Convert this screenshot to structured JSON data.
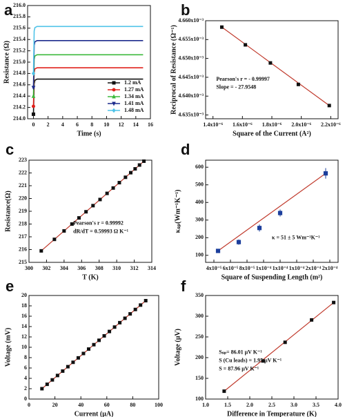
{
  "chart_data": [
    {
      "type": "line",
      "label": "a",
      "x_label": "Time (s)",
      "y_label": "Resistance (Ω)",
      "x": [
        0,
        0.1,
        0.2,
        0.5,
        1,
        5,
        10,
        15
      ],
      "series": [
        {
          "name": "1.2 mA",
          "color": "#111111",
          "values": [
            214.08,
            214.62,
            214.68,
            214.7,
            214.7,
            214.7,
            214.7,
            214.7
          ]
        },
        {
          "name": "1.27 mA",
          "color": "#e0201b",
          "values": [
            214.22,
            214.82,
            214.88,
            214.9,
            214.9,
            214.9,
            214.9,
            214.9
          ]
        },
        {
          "name": "1.34 mA",
          "color": "#3cb93c",
          "values": [
            214.4,
            215.05,
            215.11,
            215.13,
            215.13,
            215.13,
            215.13,
            215.13
          ]
        },
        {
          "name": "1.41 mA",
          "color": "#1c2a8c",
          "values": [
            214.55,
            215.3,
            215.36,
            215.38,
            215.38,
            215.38,
            215.38,
            215.38
          ]
        },
        {
          "name": "1.48 mA",
          "color": "#4fc3e8",
          "values": [
            214.8,
            215.55,
            215.61,
            215.63,
            215.63,
            215.63,
            215.63,
            215.63
          ]
        }
      ],
      "xlim": [
        -0.8,
        16
      ],
      "xticks": [
        0,
        2,
        4,
        6,
        8,
        10,
        12,
        14,
        16
      ],
      "ylim": [
        214.0,
        216.0
      ],
      "yticks": [
        {
          "value": 214.0,
          "label": "214.0"
        },
        214.2,
        214.4,
        214.6,
        214.8,
        {
          "value": 215.0,
          "label": "215.0"
        },
        215.2,
        215.4,
        215.6,
        215.8,
        {
          "value": 216.0,
          "label": "216.0"
        }
      ],
      "legend": "lower right"
    },
    {
      "type": "scatter",
      "label": "b",
      "x_label": "Square of the Current (A²)",
      "y_label": "Reciprocal of Resistance (Ω⁻¹)",
      "x": [
        1.46e-06,
        1.62e-06,
        1.79e-06,
        1.98e-06,
        2.19e-06
      ],
      "values": [
        0.0046583,
        0.0046536,
        0.0046488,
        0.0046431,
        0.0046375
      ],
      "color": "#111111",
      "line_color": "#c0392b",
      "xlim": [
        1.35e-06,
        2.25e-06
      ],
      "xticks": [
        {
          "value": 1.4e-06,
          "label": "1.4x10⁻⁶"
        },
        {
          "value": 1.6e-06,
          "label": "1.6x10⁻⁶"
        },
        {
          "value": 1.8e-06,
          "label": "1.8x10⁻⁶"
        },
        {
          "value": 2e-06,
          "label": "2.0x10⁻⁶"
        },
        {
          "value": 2.2e-06,
          "label": "2.2x10⁻⁶"
        }
      ],
      "ylim": [
        0.004634,
        0.00466
      ],
      "yticks": [
        {
          "value": 0.004635,
          "label": "4.635x10⁻³"
        },
        {
          "value": 0.00464,
          "label": "4.640x10⁻³"
        },
        {
          "value": 0.004645,
          "label": "4.645x10⁻³"
        },
        {
          "value": 0.00465,
          "label": "4.650x10⁻³"
        },
        {
          "value": 0.004655,
          "label": "4.655x10⁻³"
        },
        {
          "value": 0.00466,
          "label": "4.660x10⁻³"
        }
      ],
      "annotations": [
        "Pearson's r = - 0.99997",
        "Slope = - 27.9548"
      ]
    },
    {
      "type": "scatter",
      "label": "c",
      "x_label": "T (K)",
      "y_label": "Resistance(Ω)",
      "x": [
        301.4,
        302.9,
        304.0,
        304.9,
        305.7,
        306.5,
        307.3,
        308.1,
        308.9,
        309.6,
        310.3,
        311.0,
        311.6,
        312.1,
        312.6,
        313.1
      ],
      "values": [
        215.9,
        216.8,
        217.46,
        218.0,
        218.48,
        218.96,
        219.44,
        219.92,
        220.4,
        220.82,
        221.24,
        221.66,
        222.02,
        222.32,
        222.62,
        222.92
      ],
      "color": "#111111",
      "line_color": "#c0392b",
      "xlim": [
        300,
        314
      ],
      "xticks": [
        300,
        302,
        304,
        306,
        308,
        310,
        312,
        314
      ],
      "ylim": [
        215,
        223
      ],
      "yticks": [
        215,
        216,
        217,
        218,
        219,
        220,
        221,
        222,
        223
      ],
      "annotations": [
        "Pearson's r = 0.99992",
        "dR/dT = 0.59993 Ω K⁻¹"
      ]
    },
    {
      "type": "scatter",
      "label": "d",
      "x_label": "Square of Suspending Length (m²)",
      "y_label": "κₛₚ(Wm⁻¹K⁻¹)",
      "x": [
        4.5e-05,
        7e-05,
        9.5e-05,
        0.00012,
        0.000175
      ],
      "values": [
        125,
        175,
        255,
        340,
        565
      ],
      "errors": [
        8,
        15,
        20,
        20,
        30
      ],
      "color": "#1c3f9c",
      "line_color": "#c0392b",
      "xlim": [
        3e-05,
        0.00019
      ],
      "xticks": [
        {
          "value": 4e-05,
          "label": "4x10⁻⁵"
        },
        {
          "value": 6e-05,
          "label": "6x10⁻⁵"
        },
        {
          "value": 8e-05,
          "label": "8x10⁻⁵"
        },
        {
          "value": 0.0001,
          "label": "1x10⁻⁴"
        },
        {
          "value": 0.00012,
          "label": "1x10⁻⁴"
        },
        {
          "value": 0.00014,
          "label": "1x10⁻⁴"
        },
        {
          "value": 0.00016,
          "label": "2x10⁻⁴"
        },
        {
          "value": 0.00018,
          "label": "2x10⁻⁴"
        }
      ],
      "ylim": [
        60,
        640
      ],
      "yticks": [
        100,
        200,
        300,
        400,
        500,
        600
      ],
      "annotations": [
        "κ = 51 ± 5 Wm⁻¹K⁻¹"
      ]
    },
    {
      "type": "scatter",
      "label": "e",
      "x_label": "Current (μA)",
      "y_label": "Voltage (mV)",
      "x": [
        10,
        14,
        18,
        22,
        26,
        30,
        34,
        38,
        42,
        46,
        50,
        54,
        58,
        62,
        66,
        70,
        74,
        78,
        82,
        86,
        90
      ],
      "values": [
        2.0,
        2.85,
        3.7,
        4.55,
        5.4,
        6.25,
        7.1,
        7.95,
        8.8,
        9.65,
        10.5,
        11.35,
        12.2,
        13.05,
        13.9,
        14.75,
        15.6,
        16.45,
        17.3,
        18.15,
        19.0
      ],
      "color": "#111111",
      "line_color": "#c0392b",
      "xlim": [
        0,
        100
      ],
      "xticks": [
        0,
        20,
        40,
        60,
        80,
        100
      ],
      "ylim": [
        0,
        20
      ],
      "yticks": [
        0,
        2,
        4,
        6,
        8,
        10,
        12,
        14,
        16,
        18,
        20
      ]
    },
    {
      "type": "scatter",
      "label": "f",
      "x_label": "Difference in Temperature (K)",
      "y_label": "Voltage (μV)",
      "x": [
        1.42,
        2.3,
        2.8,
        3.4,
        3.9
      ],
      "values": [
        119,
        192,
        237,
        291,
        333
      ],
      "color": "#111111",
      "line_color": "#c0392b",
      "xlim": [
        1.0,
        4.0
      ],
      "xticks": [
        {
          "value": 1.0,
          "label": "1.0"
        },
        1.5,
        {
          "value": 2.0,
          "label": "2.0"
        },
        2.5,
        {
          "value": 3.0,
          "label": "3.0"
        },
        3.5,
        {
          "value": 4.0,
          "label": "4.0"
        }
      ],
      "ylim": [
        100,
        350
      ],
      "yticks": [
        100,
        150,
        200,
        250,
        300,
        350
      ],
      "annotations": [
        "Sₛₚ= 86.01 μV K⁻¹",
        "S (Cu leads) = 1.95 μV K⁻¹",
        "S = 87.96 μV K⁻¹"
      ]
    }
  ]
}
